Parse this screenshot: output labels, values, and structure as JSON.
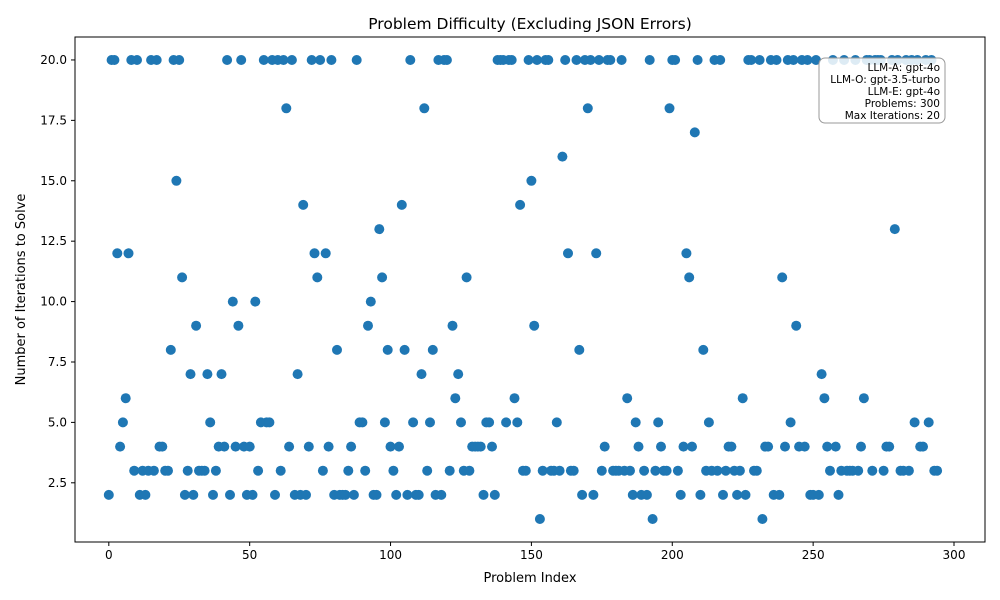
{
  "chart_data": {
    "type": "scatter",
    "title": "Problem Difficulty (Excluding JSON Errors)",
    "xlabel": "Problem Index",
    "ylabel": "Number of Iterations to Solve",
    "xlim": [
      -12,
      311
    ],
    "ylim": [
      0.05,
      20.95
    ],
    "x_ticks": [
      0,
      50,
      100,
      150,
      200,
      250,
      300
    ],
    "y_ticks": [
      2.5,
      5.0,
      7.5,
      10.0,
      12.5,
      15.0,
      17.5,
      20.0
    ],
    "y_tick_labels": [
      "2.5",
      "5.0",
      "7.5",
      "10.0",
      "12.5",
      "15.0",
      "17.5",
      "20.0"
    ],
    "grid": false,
    "marker_color": "#1f77b4",
    "info_box": {
      "placement": "top-right",
      "lines": [
        "LLM-A: gpt-4o",
        "LLM-O: gpt-3.5-turbo",
        "LLM-E: gpt-4o",
        "Problems: 300",
        "Max Iterations: 20"
      ]
    },
    "points": [
      [
        0,
        2
      ],
      [
        1,
        20
      ],
      [
        2,
        20
      ],
      [
        3,
        12
      ],
      [
        4,
        4
      ],
      [
        5,
        5
      ],
      [
        6,
        6
      ],
      [
        7,
        12
      ],
      [
        8,
        20
      ],
      [
        9,
        3
      ],
      [
        10,
        20
      ],
      [
        11,
        2
      ],
      [
        12,
        3
      ],
      [
        13,
        2
      ],
      [
        14,
        3
      ],
      [
        15,
        20
      ],
      [
        16,
        3
      ],
      [
        17,
        20
      ],
      [
        18,
        4
      ],
      [
        19,
        4
      ],
      [
        20,
        3
      ],
      [
        21,
        3
      ],
      [
        22,
        8
      ],
      [
        23,
        20
      ],
      [
        24,
        15
      ],
      [
        25,
        20
      ],
      [
        26,
        11
      ],
      [
        27,
        2
      ],
      [
        28,
        3
      ],
      [
        29,
        7
      ],
      [
        30,
        2
      ],
      [
        31,
        9
      ],
      [
        32,
        3
      ],
      [
        33,
        3
      ],
      [
        34,
        3
      ],
      [
        35,
        7
      ],
      [
        36,
        5
      ],
      [
        37,
        2
      ],
      [
        38,
        3
      ],
      [
        39,
        4
      ],
      [
        40,
        7
      ],
      [
        41,
        4
      ],
      [
        42,
        20
      ],
      [
        43,
        2
      ],
      [
        44,
        10
      ],
      [
        45,
        4
      ],
      [
        46,
        9
      ],
      [
        47,
        20
      ],
      [
        48,
        4
      ],
      [
        49,
        2
      ],
      [
        50,
        4
      ],
      [
        51,
        2
      ],
      [
        52,
        10
      ],
      [
        53,
        3
      ],
      [
        54,
        5
      ],
      [
        55,
        20
      ],
      [
        56,
        5
      ],
      [
        57,
        5
      ],
      [
        58,
        20
      ],
      [
        59,
        2
      ],
      [
        60,
        20
      ],
      [
        61,
        3
      ],
      [
        62,
        20
      ],
      [
        63,
        18
      ],
      [
        64,
        4
      ],
      [
        65,
        20
      ],
      [
        66,
        2
      ],
      [
        67,
        7
      ],
      [
        68,
        2
      ],
      [
        69,
        14
      ],
      [
        70,
        2
      ],
      [
        71,
        4
      ],
      [
        72,
        20
      ],
      [
        73,
        12
      ],
      [
        74,
        11
      ],
      [
        75,
        20
      ],
      [
        76,
        3
      ],
      [
        77,
        12
      ],
      [
        78,
        4
      ],
      [
        79,
        20
      ],
      [
        80,
        2
      ],
      [
        81,
        8
      ],
      [
        82,
        2
      ],
      [
        83,
        2
      ],
      [
        84,
        2
      ],
      [
        85,
        3
      ],
      [
        86,
        4
      ],
      [
        87,
        2
      ],
      [
        88,
        20
      ],
      [
        89,
        5
      ],
      [
        90,
        5
      ],
      [
        91,
        3
      ],
      [
        92,
        9
      ],
      [
        93,
        10
      ],
      [
        94,
        2
      ],
      [
        95,
        2
      ],
      [
        96,
        13
      ],
      [
        97,
        11
      ],
      [
        98,
        5
      ],
      [
        99,
        8
      ],
      [
        100,
        4
      ],
      [
        101,
        3
      ],
      [
        102,
        2
      ],
      [
        103,
        4
      ],
      [
        104,
        14
      ],
      [
        105,
        8
      ],
      [
        106,
        2
      ],
      [
        107,
        20
      ],
      [
        108,
        5
      ],
      [
        109,
        2
      ],
      [
        110,
        2
      ],
      [
        111,
        7
      ],
      [
        112,
        18
      ],
      [
        113,
        3
      ],
      [
        114,
        5
      ],
      [
        115,
        8
      ],
      [
        116,
        2
      ],
      [
        117,
        20
      ],
      [
        118,
        2
      ],
      [
        119,
        20
      ],
      [
        120,
        20
      ],
      [
        121,
        3
      ],
      [
        122,
        9
      ],
      [
        123,
        6
      ],
      [
        124,
        7
      ],
      [
        125,
        5
      ],
      [
        126,
        3
      ],
      [
        127,
        11
      ],
      [
        128,
        3
      ],
      [
        129,
        4
      ],
      [
        130,
        4
      ],
      [
        131,
        4
      ],
      [
        132,
        4
      ],
      [
        133,
        2
      ],
      [
        134,
        5
      ],
      [
        135,
        5
      ],
      [
        136,
        4
      ],
      [
        137,
        2
      ],
      [
        138,
        20
      ],
      [
        139,
        20
      ],
      [
        140,
        20
      ],
      [
        141,
        5
      ],
      [
        142,
        20
      ],
      [
        143,
        20
      ],
      [
        144,
        6
      ],
      [
        145,
        5
      ],
      [
        146,
        14
      ],
      [
        147,
        3
      ],
      [
        148,
        3
      ],
      [
        149,
        20
      ],
      [
        150,
        15
      ],
      [
        151,
        9
      ],
      [
        152,
        20
      ],
      [
        153,
        1
      ],
      [
        154,
        3
      ],
      [
        155,
        20
      ],
      [
        156,
        20
      ],
      [
        157,
        3
      ],
      [
        158,
        3
      ],
      [
        159,
        5
      ],
      [
        160,
        3
      ],
      [
        161,
        16
      ],
      [
        162,
        20
      ],
      [
        163,
        12
      ],
      [
        164,
        3
      ],
      [
        165,
        3
      ],
      [
        166,
        20
      ],
      [
        167,
        8
      ],
      [
        168,
        2
      ],
      [
        169,
        20
      ],
      [
        170,
        18
      ],
      [
        171,
        20
      ],
      [
        172,
        2
      ],
      [
        173,
        12
      ],
      [
        174,
        20
      ],
      [
        175,
        3
      ],
      [
        176,
        4
      ],
      [
        177,
        20
      ],
      [
        178,
        20
      ],
      [
        179,
        3
      ],
      [
        180,
        3
      ],
      [
        181,
        3
      ],
      [
        182,
        20
      ],
      [
        183,
        3
      ],
      [
        184,
        6
      ],
      [
        185,
        3
      ],
      [
        186,
        2
      ],
      [
        187,
        5
      ],
      [
        188,
        4
      ],
      [
        189,
        2
      ],
      [
        190,
        3
      ],
      [
        191,
        2
      ],
      [
        192,
        20
      ],
      [
        193,
        1
      ],
      [
        194,
        3
      ],
      [
        195,
        5
      ],
      [
        196,
        4
      ],
      [
        197,
        3
      ],
      [
        198,
        3
      ],
      [
        199,
        18
      ],
      [
        200,
        20
      ],
      [
        201,
        20
      ],
      [
        202,
        3
      ],
      [
        203,
        2
      ],
      [
        204,
        4
      ],
      [
        205,
        12
      ],
      [
        206,
        11
      ],
      [
        207,
        4
      ],
      [
        208,
        17
      ],
      [
        209,
        20
      ],
      [
        210,
        2
      ],
      [
        211,
        8
      ],
      [
        212,
        3
      ],
      [
        213,
        5
      ],
      [
        214,
        3
      ],
      [
        215,
        20
      ],
      [
        216,
        3
      ],
      [
        217,
        20
      ],
      [
        218,
        2
      ],
      [
        219,
        3
      ],
      [
        220,
        4
      ],
      [
        221,
        4
      ],
      [
        222,
        3
      ],
      [
        223,
        2
      ],
      [
        224,
        3
      ],
      [
        225,
        6
      ],
      [
        226,
        2
      ],
      [
        227,
        20
      ],
      [
        228,
        20
      ],
      [
        229,
        3
      ],
      [
        230,
        3
      ],
      [
        231,
        20
      ],
      [
        232,
        1
      ],
      [
        233,
        4
      ],
      [
        234,
        4
      ],
      [
        235,
        20
      ],
      [
        236,
        2
      ],
      [
        237,
        20
      ],
      [
        238,
        2
      ],
      [
        239,
        11
      ],
      [
        240,
        4
      ],
      [
        241,
        20
      ],
      [
        242,
        5
      ],
      [
        243,
        20
      ],
      [
        244,
        9
      ],
      [
        245,
        4
      ],
      [
        246,
        20
      ],
      [
        247,
        4
      ],
      [
        248,
        20
      ],
      [
        249,
        2
      ],
      [
        250,
        2
      ],
      [
        251,
        20
      ],
      [
        252,
        2
      ],
      [
        253,
        7
      ],
      [
        254,
        6
      ],
      [
        255,
        4
      ],
      [
        256,
        3
      ],
      [
        257,
        20
      ],
      [
        258,
        4
      ],
      [
        259,
        2
      ],
      [
        260,
        3
      ],
      [
        261,
        20
      ],
      [
        262,
        3
      ],
      [
        263,
        3
      ],
      [
        264,
        3
      ],
      [
        265,
        20
      ],
      [
        266,
        3
      ],
      [
        267,
        4
      ],
      [
        268,
        6
      ],
      [
        269,
        20
      ],
      [
        270,
        20
      ],
      [
        271,
        3
      ],
      [
        272,
        20
      ],
      [
        273,
        20
      ],
      [
        274,
        20
      ],
      [
        275,
        3
      ],
      [
        276,
        4
      ],
      [
        277,
        4
      ],
      [
        278,
        20
      ],
      [
        279,
        13
      ],
      [
        280,
        20
      ],
      [
        281,
        3
      ],
      [
        282,
        3
      ],
      [
        283,
        20
      ],
      [
        284,
        3
      ],
      [
        285,
        20
      ],
      [
        286,
        5
      ],
      [
        287,
        20
      ],
      [
        288,
        4
      ],
      [
        289,
        4
      ],
      [
        290,
        20
      ],
      [
        291,
        5
      ],
      [
        292,
        20
      ],
      [
        293,
        3
      ],
      [
        294,
        3
      ]
    ]
  }
}
